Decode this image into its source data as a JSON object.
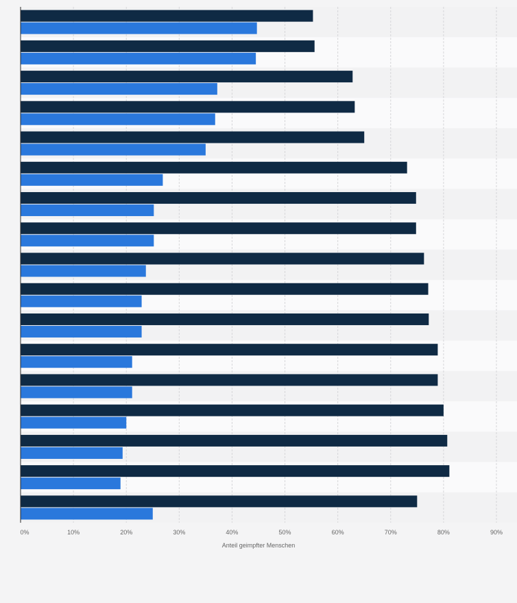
{
  "chart_data": {
    "type": "bar",
    "orientation": "horizontal",
    "categories": [
      "",
      "",
      "",
      "",
      "",
      "",
      "",
      "",
      "",
      "",
      "",
      "",
      "",
      "",
      "",
      "",
      ""
    ],
    "series": [
      {
        "values": [
          55.3,
          55.6,
          62.8,
          63.2,
          65.0,
          73.1,
          74.8,
          74.8,
          76.3,
          77.1,
          77.2,
          78.9,
          78.9,
          80.0,
          80.7,
          81.1,
          75.0
        ],
        "color": "#0f2a44"
      },
      {
        "values": [
          44.7,
          44.5,
          37.2,
          36.8,
          35.0,
          26.9,
          25.2,
          25.2,
          23.7,
          22.9,
          22.9,
          21.1,
          21.1,
          20.0,
          19.3,
          18.9,
          25.0
        ],
        "color": "#2a78dc"
      }
    ],
    "xlim": [
      0,
      90
    ],
    "xticks": [
      "0%",
      "10%",
      "20%",
      "30%",
      "40%",
      "50%",
      "60%",
      "70%",
      "80%",
      "90%"
    ],
    "xlabel": "Anteil geimpfter Menschen",
    "grid": true
  }
}
